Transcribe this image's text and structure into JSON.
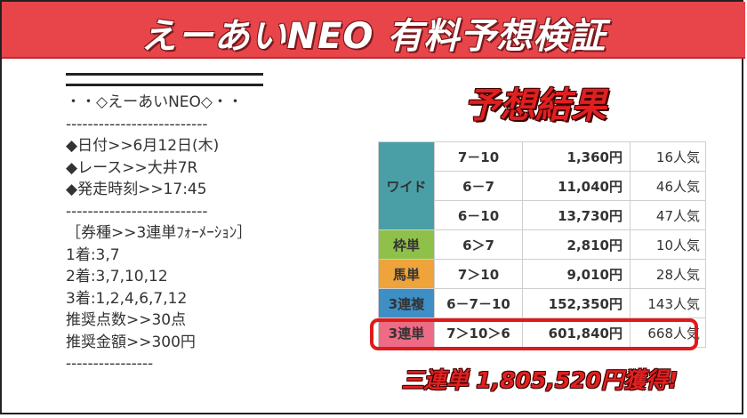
{
  "banner": {
    "title": "えーあいNEO 有料予想検証"
  },
  "prediction": {
    "lines": [
      "・・◇えーあいNEO◇・・",
      "--------------------------",
      "◆日付>>6月12日(木)",
      "◆レース>>大井7R",
      "◆発走時刻>>17:45",
      "--------------------------",
      "［券種>>3連単ﾌｫｰﾒｰｼｮﾝ］",
      "1着:3,7",
      "2着:3,7,10,12",
      "3着:1,2,4,6,7,12",
      "",
      "推奨点数>>30点",
      "推奨金額>>300円",
      "----------------"
    ]
  },
  "result": {
    "title": "予想結果",
    "rows": [
      {
        "type": "ワイド",
        "combination": "7－10",
        "payout": "1,360円",
        "popularity": "16人気"
      },
      {
        "type": "",
        "combination": "6－7",
        "payout": "11,040円",
        "popularity": "46人気"
      },
      {
        "type": "",
        "combination": "6－10",
        "payout": "13,730円",
        "popularity": "47人気"
      },
      {
        "type": "枠単",
        "combination": "6＞7",
        "payout": "2,810円",
        "popularity": "10人気"
      },
      {
        "type": "馬単",
        "combination": "7＞10",
        "payout": "9,010円",
        "popularity": "28人気"
      },
      {
        "type": "3連複",
        "combination": "6－7－10",
        "payout": "152,350円",
        "popularity": "143人気"
      },
      {
        "type": "3連単",
        "combination": "7＞10＞6",
        "payout": "601,840円",
        "popularity": "668人気"
      }
    ],
    "colors": {
      "wide": "#4a9fa6",
      "waku": "#8fc04a",
      "uma": "#eea33b",
      "sanpuku": "#3d8fc6",
      "santan": "#ee6b86",
      "highlight": "#e01a1a"
    }
  },
  "win_text": "三連単 1,805,520円獲得!"
}
